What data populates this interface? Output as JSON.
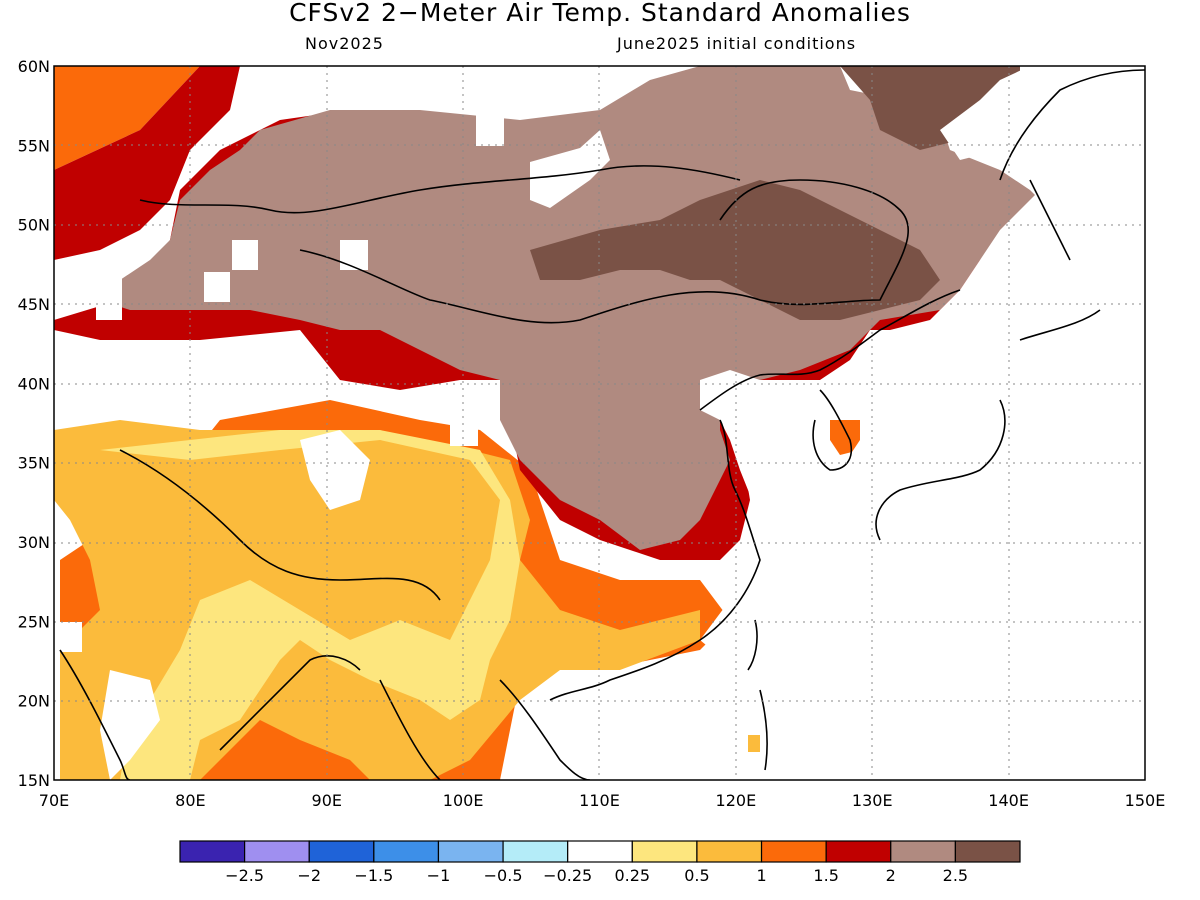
{
  "title": "CFSv2 2−Meter Air Temp. Standard Anomalies",
  "subtitle_left": "Nov2025",
  "subtitle_right": "June2025 initial conditions",
  "map": {
    "lon_range": [
      70,
      150
    ],
    "lat_range": [
      15,
      60
    ],
    "lon_ticks": [
      "70E",
      "80E",
      "90E",
      "100E",
      "110E",
      "120E",
      "130E",
      "140E",
      "150E"
    ],
    "lat_ticks": [
      "60N",
      "55N",
      "50N",
      "45N",
      "40N",
      "35N",
      "30N",
      "25N",
      "20N",
      "15N"
    ],
    "grid": "dotted"
  },
  "colorbar": {
    "colors": [
      "#3a23b0",
      "#9f8ff0",
      "#1f63d8",
      "#3d8fe8",
      "#7ab4f0",
      "#b4ecf8",
      "#ffffff",
      "#fde67e",
      "#fbbb3c",
      "#fb6a0a",
      "#c00000",
      "#b08a80",
      "#7a5246"
    ],
    "labels": [
      "−2.5",
      "−2",
      "−1.5",
      "−1",
      "−0.5",
      "−0.25",
      "0.25",
      "0.5",
      "1",
      "1.5",
      "2",
      "2.5"
    ]
  }
}
